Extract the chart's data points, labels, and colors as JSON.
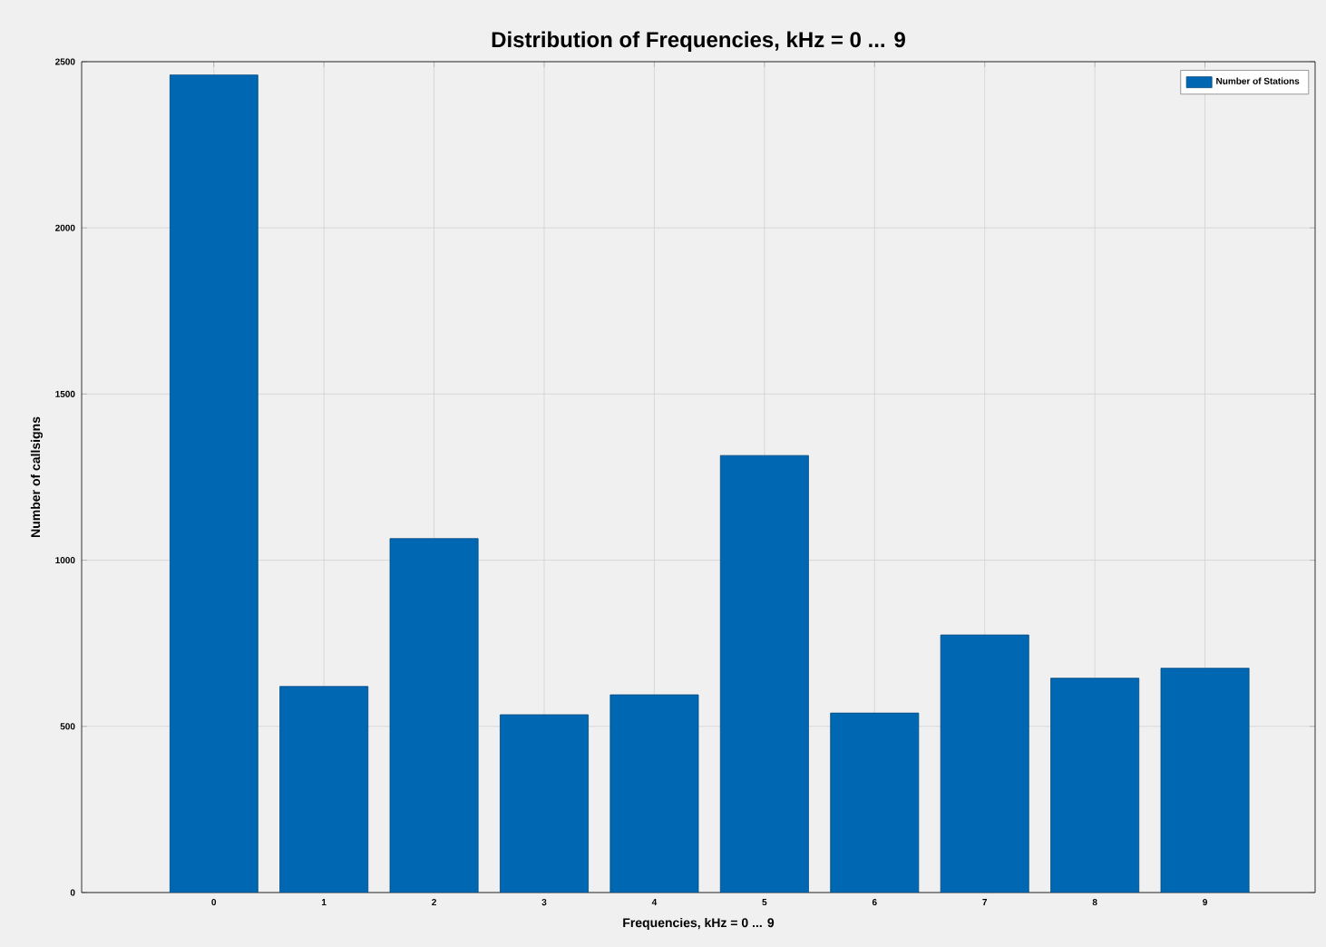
{
  "chart_data": {
    "type": "bar",
    "title": "Distribution of Frequencies, kHz = 0 ... 9",
    "xlabel": "Frequencies, kHz = 0 ... 9",
    "ylabel": "Number of callsigns",
    "categories": [
      "0",
      "1",
      "2",
      "3",
      "4",
      "5",
      "6",
      "7",
      "8",
      "9"
    ],
    "series": [
      {
        "name": "Number of Stations",
        "color": "#0068b3",
        "values": [
          2460,
          620,
          1065,
          535,
          595,
          1315,
          540,
          775,
          645,
          675
        ]
      }
    ],
    "ylim": [
      0,
      2500
    ],
    "yticks": [
      0,
      500,
      1000,
      1500,
      2000,
      2500
    ],
    "grid": true,
    "legend": "top right"
  }
}
